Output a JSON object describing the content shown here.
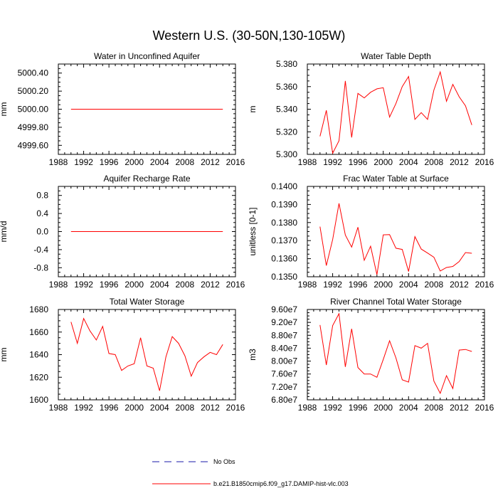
{
  "title": "Western U.S. (30-50N,130-105W)",
  "colors": {
    "series": "#ff0000",
    "obs": "#1a1aaa"
  },
  "legend": {
    "items": [
      {
        "label": "No Obs",
        "style": "dashed",
        "color": "#1a1aaa"
      },
      {
        "label": "b.e21.B1850cmip6.f09_g17.DAMIP-hist-vlc.003",
        "style": "solid",
        "color": "#ff0000"
      }
    ]
  },
  "chart_data": [
    {
      "type": "line",
      "title": "Water in Unconfined Aquifer",
      "ylabel": "mm",
      "xlim": [
        1988,
        2016
      ],
      "ylim": [
        4999.5,
        5000.5
      ],
      "xticks": [
        1988,
        1992,
        1996,
        2000,
        2004,
        2008,
        2012,
        2016
      ],
      "yticks": [
        4999.6,
        4999.8,
        5000.0,
        5000.2,
        5000.4
      ],
      "ytick_labels": [
        "4999.60",
        "4999.80",
        "5000.00",
        "5000.20",
        "5000.40"
      ],
      "x": [
        1990,
        1991,
        1992,
        1993,
        1994,
        1995,
        1996,
        1997,
        1998,
        1999,
        2000,
        2001,
        2002,
        2003,
        2004,
        2005,
        2006,
        2007,
        2008,
        2009,
        2010,
        2011,
        2012,
        2013,
        2014
      ],
      "values": [
        5000,
        5000,
        5000,
        5000,
        5000,
        5000,
        5000,
        5000,
        5000,
        5000,
        5000,
        5000,
        5000,
        5000,
        5000,
        5000,
        5000,
        5000,
        5000,
        5000,
        5000,
        5000,
        5000,
        5000,
        5000
      ]
    },
    {
      "type": "line",
      "title": "Water Table Depth",
      "ylabel": "m",
      "xlim": [
        1988,
        2016
      ],
      "ylim": [
        5.3,
        5.38
      ],
      "xticks": [
        1988,
        1992,
        1996,
        2000,
        2004,
        2008,
        2012,
        2016
      ],
      "yticks": [
        5.3,
        5.32,
        5.34,
        5.36,
        5.38
      ],
      "ytick_labels": [
        "5.300",
        "5.320",
        "5.340",
        "5.360",
        "5.380"
      ],
      "x": [
        1990,
        1991,
        1992,
        1993,
        1994,
        1995,
        1996,
        1997,
        1998,
        1999,
        2000,
        2001,
        2002,
        2003,
        2004,
        2005,
        2006,
        2007,
        2008,
        2009,
        2010,
        2011,
        2012,
        2013,
        2014
      ],
      "values": [
        5.316,
        5.339,
        5.301,
        5.312,
        5.365,
        5.315,
        5.354,
        5.35,
        5.355,
        5.358,
        5.359,
        5.333,
        5.345,
        5.36,
        5.369,
        5.331,
        5.337,
        5.331,
        5.357,
        5.373,
        5.347,
        5.362,
        5.351,
        5.343,
        5.326
      ]
    },
    {
      "type": "line",
      "title": "Aquifer Recharge Rate",
      "ylabel": "mm/d",
      "xlim": [
        1988,
        2016
      ],
      "ylim": [
        -1.0,
        1.0
      ],
      "xticks": [
        1988,
        1992,
        1996,
        2000,
        2004,
        2008,
        2012,
        2016
      ],
      "yticks": [
        -0.8,
        -0.4,
        0.0,
        0.4,
        0.8
      ],
      "ytick_labels": [
        "-0.8",
        "-0.4",
        "0.0",
        "0.4",
        "0.8"
      ],
      "x": [
        1990,
        1991,
        1992,
        1993,
        1994,
        1995,
        1996,
        1997,
        1998,
        1999,
        2000,
        2001,
        2002,
        2003,
        2004,
        2005,
        2006,
        2007,
        2008,
        2009,
        2010,
        2011,
        2012,
        2013,
        2014
      ],
      "values": [
        0,
        0,
        0,
        0,
        0,
        0,
        0,
        0,
        0,
        0,
        0,
        0,
        0,
        0,
        0,
        0,
        0,
        0,
        0,
        0,
        0,
        0,
        0,
        0,
        0
      ]
    },
    {
      "type": "line",
      "title": "Frac Water Table at Surface",
      "ylabel": "unitless [0-1]",
      "xlim": [
        1988,
        2016
      ],
      "ylim": [
        0.135,
        0.14
      ],
      "xticks": [
        1988,
        1992,
        1996,
        2000,
        2004,
        2008,
        2012,
        2016
      ],
      "yticks": [
        0.135,
        0.136,
        0.137,
        0.138,
        0.139,
        0.14
      ],
      "ytick_labels": [
        "0.1350",
        "0.1360",
        "0.1370",
        "0.1380",
        "0.1390",
        "0.1400"
      ],
      "x": [
        1990,
        1991,
        1992,
        1993,
        1994,
        1995,
        1996,
        1997,
        1998,
        1999,
        2000,
        2001,
        2002,
        2003,
        2004,
        2005,
        2006,
        2007,
        2008,
        2009,
        2010,
        2011,
        2012,
        2013,
        2014
      ],
      "values": [
        0.13777,
        0.13562,
        0.13706,
        0.13906,
        0.13731,
        0.13664,
        0.13774,
        0.13591,
        0.13669,
        0.13512,
        0.13732,
        0.13733,
        0.13658,
        0.13651,
        0.13529,
        0.13722,
        0.13653,
        0.13631,
        0.13608,
        0.13532,
        0.13551,
        0.13557,
        0.13584,
        0.13634,
        0.1363
      ]
    },
    {
      "type": "line",
      "title": "Total Water Storage",
      "ylabel": "mm",
      "xlim": [
        1988,
        2016
      ],
      "ylim": [
        1600,
        1680
      ],
      "xticks": [
        1988,
        1992,
        1996,
        2000,
        2004,
        2008,
        2012,
        2016
      ],
      "yticks": [
        1600,
        1620,
        1640,
        1660,
        1680
      ],
      "ytick_labels": [
        "1600",
        "1620",
        "1640",
        "1660",
        "1680"
      ],
      "x": [
        1990,
        1991,
        1992,
        1993,
        1994,
        1995,
        1996,
        1997,
        1998,
        1999,
        2000,
        2001,
        2002,
        2003,
        2004,
        2005,
        2006,
        2007,
        2008,
        2009,
        2010,
        2011,
        2012,
        2013,
        2014
      ],
      "values": [
        1669,
        1650,
        1672,
        1661,
        1653,
        1665,
        1641,
        1640,
        1626,
        1630,
        1632,
        1655,
        1630,
        1628,
        1608,
        1638,
        1656,
        1650,
        1639,
        1621,
        1633,
        1638,
        1642,
        1640,
        1649
      ]
    },
    {
      "type": "line",
      "title": "River Channel Total Water Storage",
      "ylabel": "m3",
      "xlim": [
        1988,
        2016
      ],
      "ylim": [
        68000000.0,
        96000000.0
      ],
      "xticks": [
        1988,
        1992,
        1996,
        2000,
        2004,
        2008,
        2012,
        2016
      ],
      "yticks": [
        68000000.0,
        72000000.0,
        76000000.0,
        80000000.0,
        84000000.0,
        88000000.0,
        92000000.0,
        96000000.0
      ],
      "ytick_labels": [
        "6.80e7",
        "7.20e7",
        "7.60e7",
        "8.00e7",
        "8.40e7",
        "8.80e7",
        "9.20e7",
        "9.60e7"
      ],
      "x": [
        1990,
        1991,
        1992,
        1993,
        1994,
        1995,
        1996,
        1997,
        1998,
        1999,
        2000,
        2001,
        2002,
        2003,
        2004,
        2005,
        2006,
        2007,
        2008,
        2009,
        2010,
        2011,
        2012,
        2013,
        2014
      ],
      "values": [
        91200000.0,
        78800000.0,
        91000000.0,
        94700000.0,
        78200000.0,
        90000000.0,
        78000000.0,
        76000000.0,
        76000000.0,
        75000000.0,
        80500000.0,
        86300000.0,
        81000000.0,
        74200000.0,
        73500000.0,
        84800000.0,
        84000000.0,
        85500000.0,
        73800000.0,
        70000000.0,
        75500000.0,
        71500000.0,
        83400000.0,
        83600000.0,
        83000000.0
      ]
    }
  ]
}
